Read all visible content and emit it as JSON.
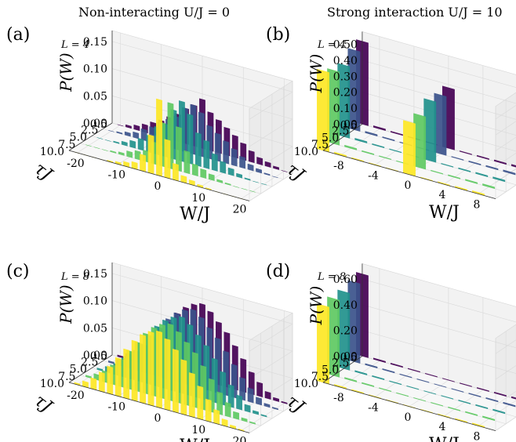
{
  "figure": {
    "col_titles": [
      "Non-interacting U/J = 0",
      "Strong interaction  U/J = 10"
    ]
  },
  "colors": [
    "#440154",
    "#3b528b",
    "#21918c",
    "#5ec962",
    "#fde725"
  ],
  "chart_data": [
    {
      "panel": "(a)",
      "type": "bar",
      "projection": "3d",
      "size_label": "L = 4",
      "zlabel": "P(W)",
      "xlabel": "W/J",
      "ylabel": "τJ",
      "x_ticks": [
        "-20",
        "-10",
        "0",
        "10",
        "20"
      ],
      "xlim": [
        -22,
        22
      ],
      "y_ticks": [
        "0.5",
        "2.5",
        "5.0",
        "7.5",
        "10.0"
      ],
      "ylim": [
        0.5,
        10
      ],
      "z_ticks": [
        "0.00",
        "0.05",
        "0.10",
        "0.15"
      ],
      "zlim": [
        0,
        0.17
      ],
      "tau_values": [
        0.5,
        2.5,
        5.0,
        7.5,
        10.0
      ],
      "series": [
        {
          "tau": 0.5,
          "x": [
            -20,
            -18,
            -16,
            -14,
            -12,
            -10,
            -8,
            -6,
            -4,
            -2,
            0,
            2,
            4,
            6,
            8,
            10,
            12,
            14,
            16,
            18,
            20
          ],
          "values": [
            0.0,
            0.004,
            0.008,
            0.014,
            0.022,
            0.03,
            0.04,
            0.05,
            0.065,
            0.075,
            0.09,
            0.07,
            0.06,
            0.05,
            0.04,
            0.03,
            0.02,
            0.012,
            0.008,
            0.004,
            0.0
          ]
        },
        {
          "tau": 2.5,
          "x": [
            -20,
            -18,
            -16,
            -14,
            -12,
            -10,
            -8,
            -6,
            -4,
            -2,
            0,
            2,
            4,
            6,
            8,
            10,
            12,
            14,
            16,
            18,
            20
          ],
          "values": [
            0.0,
            0.002,
            0.006,
            0.01,
            0.02,
            0.028,
            0.04,
            0.05,
            0.06,
            0.08,
            0.09,
            0.08,
            0.06,
            0.05,
            0.04,
            0.03,
            0.02,
            0.01,
            0.006,
            0.002,
            0.0
          ]
        },
        {
          "tau": 5.0,
          "x": [
            -20,
            -18,
            -16,
            -14,
            -12,
            -10,
            -8,
            -6,
            -4,
            -2,
            0,
            2,
            4,
            6,
            8,
            10,
            12,
            14,
            16,
            18,
            20
          ],
          "values": [
            0.0,
            0.0,
            0.002,
            0.006,
            0.012,
            0.02,
            0.03,
            0.05,
            0.06,
            0.09,
            0.11,
            0.09,
            0.06,
            0.05,
            0.03,
            0.02,
            0.012,
            0.006,
            0.002,
            0.0,
            0.0
          ]
        },
        {
          "tau": 7.5,
          "x": [
            -20,
            -18,
            -16,
            -14,
            -12,
            -10,
            -8,
            -6,
            -4,
            -2,
            0,
            2,
            4,
            6,
            8,
            10,
            12,
            14,
            16,
            18,
            20
          ],
          "values": [
            0.0,
            0.0,
            0.0,
            0.002,
            0.004,
            0.01,
            0.015,
            0.02,
            0.04,
            0.08,
            0.12,
            0.08,
            0.04,
            0.02,
            0.015,
            0.01,
            0.004,
            0.002,
            0.0,
            0.0,
            0.0
          ]
        },
        {
          "tau": 10.0,
          "x": [
            -20,
            -18,
            -16,
            -14,
            -12,
            -10,
            -8,
            -6,
            -4,
            -2,
            0,
            2,
            4,
            6,
            8,
            10,
            12,
            14,
            16,
            18,
            20
          ],
          "values": [
            0.0,
            0.0,
            0.0,
            0.0,
            0.002,
            0.004,
            0.008,
            0.012,
            0.03,
            0.07,
            0.14,
            0.07,
            0.03,
            0.012,
            0.008,
            0.004,
            0.002,
            0.0,
            0.0,
            0.0,
            0.0
          ]
        }
      ]
    },
    {
      "panel": "(b)",
      "type": "bar",
      "projection": "3d",
      "size_label": "L = 4",
      "zlabel": "P(W)",
      "xlabel": "W/J",
      "ylabel": "τJ",
      "x_ticks": [
        "-8",
        "-4",
        "0",
        "4",
        "8"
      ],
      "xlim": [
        -10,
        10
      ],
      "y_ticks": [
        "0.5",
        "2.5",
        "5.0",
        "7.5",
        "10.0"
      ],
      "ylim": [
        0.5,
        10
      ],
      "z_ticks": [
        "0.00",
        "0.10",
        "0.20",
        "0.30",
        "0.40",
        "0.50"
      ],
      "zlim": [
        0,
        0.58
      ],
      "tau_values": [
        0.5,
        2.5,
        5.0,
        7.5,
        10.0
      ],
      "series": [
        {
          "tau": 0.5,
          "x": [
            -10,
            -8,
            -6,
            -4,
            -2,
            0,
            2,
            4,
            6,
            8
          ],
          "values": [
            0.52,
            0.01,
            0.006,
            0.004,
            0.003,
            0.38,
            0.004,
            0.006,
            0.008,
            0.01
          ]
        },
        {
          "tau": 2.5,
          "x": [
            -10,
            -8,
            -6,
            -4,
            -2,
            0,
            2,
            4,
            6,
            8
          ],
          "values": [
            0.5,
            0.01,
            0.006,
            0.004,
            0.003,
            0.37,
            0.004,
            0.006,
            0.008,
            0.01
          ]
        },
        {
          "tau": 5.0,
          "x": [
            -10,
            -8,
            -6,
            -4,
            -2,
            0,
            2,
            4,
            6,
            8
          ],
          "values": [
            0.45,
            0.01,
            0.006,
            0.004,
            0.003,
            0.38,
            0.004,
            0.006,
            0.008,
            0.01
          ]
        },
        {
          "tau": 7.5,
          "x": [
            -10,
            -8,
            -6,
            -4,
            -2,
            0,
            2,
            4,
            6,
            8
          ],
          "values": [
            0.46,
            0.01,
            0.006,
            0.004,
            0.003,
            0.33,
            0.004,
            0.006,
            0.008,
            0.01
          ]
        },
        {
          "tau": 10.0,
          "x": [
            -10,
            -8,
            -6,
            -4,
            -2,
            0,
            2,
            4,
            6,
            8
          ],
          "values": [
            0.5,
            0.01,
            0.006,
            0.004,
            0.003,
            0.33,
            0.004,
            0.006,
            0.008,
            0.01
          ]
        }
      ]
    },
    {
      "panel": "(c)",
      "type": "bar",
      "projection": "3d",
      "size_label": "L = 8",
      "zlabel": "P(W)",
      "xlabel": "W/J",
      "ylabel": "τJ",
      "x_ticks": [
        "-20",
        "-10",
        "0",
        "10",
        "20"
      ],
      "xlim": [
        -22,
        22
      ],
      "y_ticks": [
        "0.5",
        "2.5",
        "5.0",
        "7.5",
        "10.0"
      ],
      "ylim": [
        0.5,
        10
      ],
      "z_ticks": [
        "0.00",
        "0.05",
        "0.10",
        "0.15"
      ],
      "zlim": [
        0,
        0.17
      ],
      "tau_values": [
        0.5,
        2.5,
        5.0,
        7.5,
        10.0
      ],
      "series": [
        {
          "tau": 0.5,
          "x": [
            -20,
            -18,
            -16,
            -14,
            -12,
            -10,
            -8,
            -6,
            -4,
            -2,
            0,
            2,
            4,
            6,
            8,
            10,
            12,
            14,
            16,
            18,
            20
          ],
          "values": [
            0.003,
            0.01,
            0.02,
            0.035,
            0.05,
            0.07,
            0.09,
            0.11,
            0.125,
            0.135,
            0.14,
            0.13,
            0.115,
            0.1,
            0.08,
            0.06,
            0.04,
            0.025,
            0.012,
            0.005,
            0.002
          ]
        },
        {
          "tau": 2.5,
          "x": [
            -20,
            -18,
            -16,
            -14,
            -12,
            -10,
            -8,
            -6,
            -4,
            -2,
            0,
            2,
            4,
            6,
            8,
            10,
            12,
            14,
            16,
            18,
            20
          ],
          "values": [
            0.003,
            0.01,
            0.02,
            0.035,
            0.05,
            0.07,
            0.09,
            0.11,
            0.125,
            0.135,
            0.14,
            0.13,
            0.115,
            0.1,
            0.08,
            0.06,
            0.04,
            0.025,
            0.012,
            0.005,
            0.002
          ]
        },
        {
          "tau": 5.0,
          "x": [
            -20,
            -18,
            -16,
            -14,
            -12,
            -10,
            -8,
            -6,
            -4,
            -2,
            0,
            2,
            4,
            6,
            8,
            10,
            12,
            14,
            16,
            18,
            20
          ],
          "values": [
            0.003,
            0.01,
            0.02,
            0.035,
            0.05,
            0.07,
            0.09,
            0.11,
            0.125,
            0.135,
            0.14,
            0.13,
            0.115,
            0.1,
            0.08,
            0.06,
            0.04,
            0.025,
            0.012,
            0.005,
            0.002
          ]
        },
        {
          "tau": 7.5,
          "x": [
            -20,
            -18,
            -16,
            -14,
            -12,
            -10,
            -8,
            -6,
            -4,
            -2,
            0,
            2,
            4,
            6,
            8,
            10,
            12,
            14,
            16,
            18,
            20
          ],
          "values": [
            0.003,
            0.01,
            0.02,
            0.035,
            0.05,
            0.07,
            0.09,
            0.11,
            0.125,
            0.135,
            0.14,
            0.13,
            0.115,
            0.1,
            0.08,
            0.06,
            0.04,
            0.025,
            0.012,
            0.005,
            0.002
          ]
        },
        {
          "tau": 10.0,
          "x": [
            -20,
            -18,
            -16,
            -14,
            -12,
            -10,
            -8,
            -6,
            -4,
            -2,
            0,
            2,
            4,
            6,
            8,
            10,
            12,
            14,
            16,
            18,
            20
          ],
          "values": [
            0.003,
            0.01,
            0.02,
            0.035,
            0.05,
            0.07,
            0.09,
            0.11,
            0.125,
            0.135,
            0.14,
            0.13,
            0.115,
            0.1,
            0.08,
            0.06,
            0.04,
            0.025,
            0.012,
            0.005,
            0.002
          ]
        }
      ]
    },
    {
      "panel": "(d)",
      "type": "bar",
      "projection": "3d",
      "size_label": "L = 8",
      "zlabel": "P(W)",
      "xlabel": "W/J",
      "ylabel": "τJ",
      "x_ticks": [
        "-8",
        "-4",
        "0",
        "4",
        "8"
      ],
      "xlim": [
        -10,
        10
      ],
      "y_ticks": [
        "0.5",
        "2.5",
        "5.0",
        "7.5",
        "10.0"
      ],
      "ylim": [
        0.5,
        10
      ],
      "z_ticks": [
        "0.00",
        "0.20",
        "0.40",
        "0.60"
      ],
      "zlim": [
        0,
        0.72
      ],
      "tau_values": [
        0.5,
        2.5,
        5.0,
        7.5,
        10.0
      ],
      "series": [
        {
          "tau": 0.5,
          "x": [
            -10,
            -8,
            -6,
            -4,
            -2,
            0,
            2,
            4,
            6,
            8
          ],
          "values": [
            0.64,
            0.01,
            0.008,
            0.005,
            0.004,
            0.003,
            0.004,
            0.006,
            0.008,
            0.01
          ]
        },
        {
          "tau": 2.5,
          "x": [
            -10,
            -8,
            -6,
            -4,
            -2,
            0,
            2,
            4,
            6,
            8
          ],
          "values": [
            0.62,
            0.01,
            0.008,
            0.005,
            0.004,
            0.003,
            0.004,
            0.006,
            0.008,
            0.01
          ]
        },
        {
          "tau": 5.0,
          "x": [
            -10,
            -8,
            -6,
            -4,
            -2,
            0,
            2,
            4,
            6,
            8
          ],
          "values": [
            0.6,
            0.01,
            0.008,
            0.005,
            0.004,
            0.003,
            0.004,
            0.006,
            0.008,
            0.01
          ]
        },
        {
          "tau": 7.5,
          "x": [
            -10,
            -8,
            -6,
            -4,
            -2,
            0,
            2,
            4,
            6,
            8
          ],
          "values": [
            0.6,
            0.01,
            0.008,
            0.005,
            0.004,
            0.003,
            0.004,
            0.006,
            0.008,
            0.01
          ]
        },
        {
          "tau": 10.0,
          "x": [
            -10,
            -8,
            -6,
            -4,
            -2,
            0,
            2,
            4,
            6,
            8
          ],
          "values": [
            0.6,
            0.01,
            0.008,
            0.005,
            0.004,
            0.003,
            0.004,
            0.006,
            0.008,
            0.01
          ]
        }
      ]
    }
  ]
}
